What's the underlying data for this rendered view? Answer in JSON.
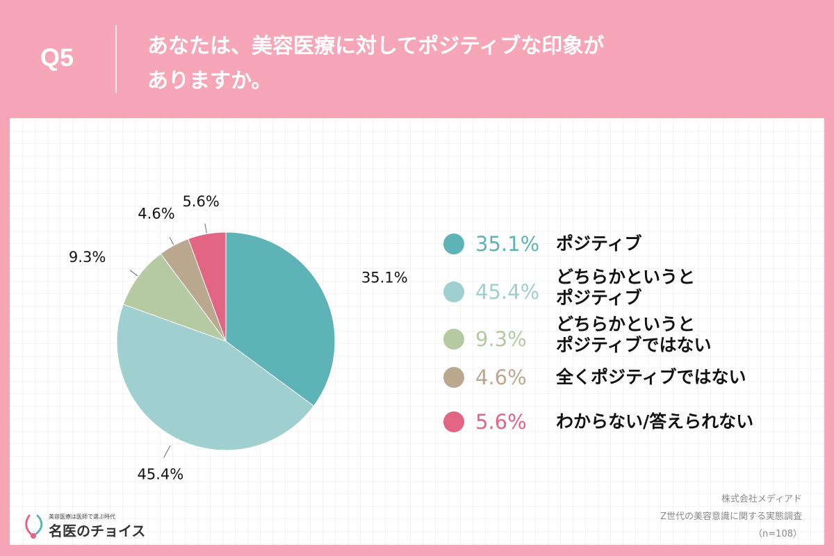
{
  "header": {
    "q_label": "Q5",
    "question_line1": "あなたは、美容医療に対してポジティブな印象が",
    "question_line2": "ありますか。"
  },
  "chart_data": {
    "type": "pie",
    "categories": [
      "ポジティブ",
      "どちらかというと\nポジティブ",
      "どちらかというと\nポジティブではない",
      "全くポジティブではない",
      "わからない/答えられない"
    ],
    "values": [
      35.1,
      45.4,
      9.3,
      4.6,
      5.6
    ],
    "labels": [
      "35.1%",
      "45.4%",
      "9.3%",
      "4.6%",
      "5.6%"
    ],
    "colors": [
      "#5db3b5",
      "#9fcfcf",
      "#b5c9a3",
      "#bba98f",
      "#e26584"
    ],
    "legend_text_colors": [
      "#5db3b5",
      "#9fcfcf",
      "#b5c9a3",
      "#bba98f",
      "#e26584"
    ],
    "start_angle": "12 o'clock",
    "direction": "clockwise",
    "legend_position": "right"
  },
  "source": {
    "line1": "株式会社メディアド",
    "line2": "Z世代の美容意識に関する実態調査",
    "line3": "（n=108）"
  },
  "logo": {
    "tagline": "美容医療は医師で選ぶ時代",
    "name": "名医のチョイス",
    "icon": "stethoscope-heart-icon"
  }
}
